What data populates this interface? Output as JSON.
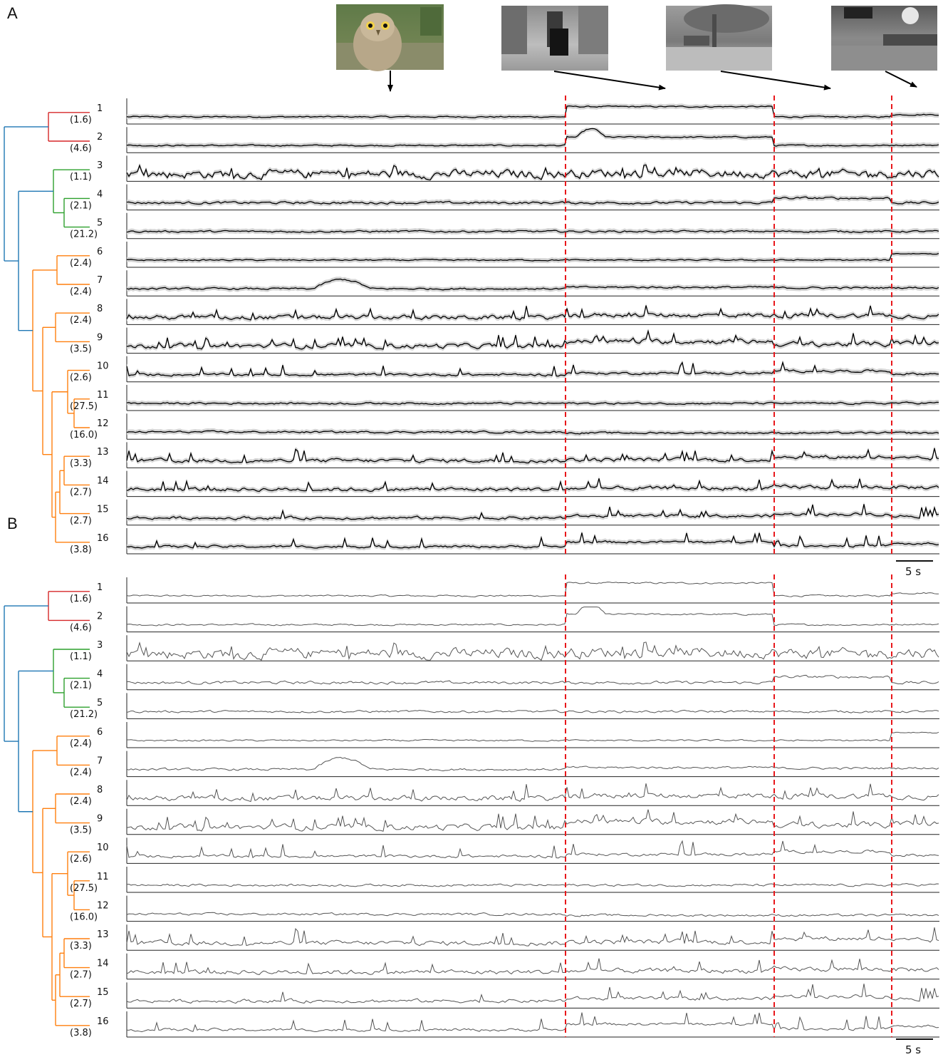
{
  "panels": [
    {
      "letter": "A",
      "style": "mean-with-band"
    },
    {
      "letter": "B",
      "style": "single-trace"
    }
  ],
  "scale_bar_label": "5 s",
  "thumbnails": [
    {
      "icon": "owl-photo-icon",
      "tone": "color"
    },
    {
      "icon": "corridor-dog-photo-icon",
      "tone": "grayscale"
    },
    {
      "icon": "outdoor-grass-tree-photo-icon",
      "tone": "grayscale"
    },
    {
      "icon": "indoor-hall-photo-icon",
      "tone": "grayscale"
    }
  ],
  "colors": {
    "red_cluster": "#d62728",
    "green_cluster": "#2ca02c",
    "orange_cluster": "#ff7f0e",
    "root_blue": "#1f77b4",
    "event_line": "#e8171b",
    "mean_trace": "#000000",
    "single_trace": "#555555",
    "band": "#d3d3d3"
  },
  "leaves": [
    {
      "id": "1",
      "value": "(1.6)",
      "cluster": "red"
    },
    {
      "id": "2",
      "value": "(4.6)",
      "cluster": "red"
    },
    {
      "id": "3",
      "value": "(1.1)",
      "cluster": "green"
    },
    {
      "id": "4",
      "value": "(2.1)",
      "cluster": "green"
    },
    {
      "id": "5",
      "value": "(21.2)",
      "cluster": "green"
    },
    {
      "id": "6",
      "value": "(2.4)",
      "cluster": "orange"
    },
    {
      "id": "7",
      "value": "(2.4)",
      "cluster": "orange"
    },
    {
      "id": "8",
      "value": "(2.4)",
      "cluster": "orange"
    },
    {
      "id": "9",
      "value": "(3.5)",
      "cluster": "orange"
    },
    {
      "id": "10",
      "value": "(2.6)",
      "cluster": "orange"
    },
    {
      "id": "11",
      "value": "(27.5)",
      "cluster": "orange"
    },
    {
      "id": "12",
      "value": "(16.0)",
      "cluster": "orange"
    },
    {
      "id": "13",
      "value": "(3.3)",
      "cluster": "orange"
    },
    {
      "id": "14",
      "value": "(2.7)",
      "cluster": "orange"
    },
    {
      "id": "15",
      "value": "(2.7)",
      "cluster": "orange"
    },
    {
      "id": "16",
      "value": "(3.8)",
      "cluster": "orange"
    }
  ]
}
